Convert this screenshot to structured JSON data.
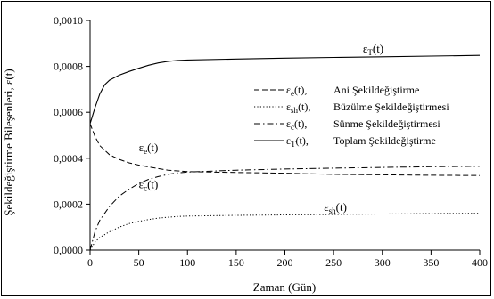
{
  "chart_data": {
    "type": "line",
    "title": "",
    "xlabel": "Zaman (Gün)",
    "ylabel": "Şekildeğiştirme Bileşenleri, ε(t)",
    "xlim": [
      0,
      400
    ],
    "ylim": [
      0,
      0.001
    ],
    "x_ticks": [
      "0",
      "50",
      "100",
      "150",
      "200",
      "250",
      "300",
      "350",
      "400"
    ],
    "y_ticks": [
      "0,0000",
      "0,0002",
      "0,0004",
      "0,0006",
      "0,0008",
      "0,0010"
    ],
    "grid": false,
    "legend": {
      "position": "center-right",
      "entries": [
        {
          "symbol": "ε",
          "sub": "e",
          "suffix": "(t),",
          "text": "Ani Şekildeğiştirme"
        },
        {
          "symbol": "ε",
          "sub": "sh",
          "suffix": "(t),",
          "text": "Büzülme Şekildeğiştirmesi"
        },
        {
          "symbol": "ε",
          "sub": "c",
          "suffix": "(t),",
          "text": "Sünme Şekildeğiştirmesi"
        },
        {
          "symbol": "ε",
          "sub": "T",
          "suffix": "(t),",
          "text": "Toplam Şekildeğiştirme"
        }
      ]
    },
    "series": [
      {
        "name": "εe(t)",
        "style": "dashed",
        "x": [
          0,
          5,
          10,
          20,
          30,
          40,
          50,
          60,
          80,
          100,
          150,
          200,
          250,
          300,
          350,
          400
        ],
        "y": [
          0.00055,
          0.000495,
          0.000455,
          0.000415,
          0.000395,
          0.00038,
          0.00037,
          0.000362,
          0.000348,
          0.000342,
          0.000338,
          0.000335,
          0.00033,
          0.000328,
          0.000326,
          0.000325
        ]
      },
      {
        "name": "εsh(t)",
        "style": "dotted",
        "x": [
          0,
          5,
          10,
          20,
          30,
          40,
          50,
          60,
          70,
          80,
          90,
          100,
          150,
          200,
          250,
          300,
          350,
          400
        ],
        "y": [
          0,
          3.5e-05,
          5.5e-05,
          8e-05,
          0.0001,
          0.000115,
          0.000125,
          0.000133,
          0.000139,
          0.000143,
          0.000146,
          0.000148,
          0.000151,
          0.000153,
          0.000155,
          0.000157,
          0.000159,
          0.00016
        ]
      },
      {
        "name": "εc(t)",
        "style": "dashdot",
        "x": [
          0,
          5,
          10,
          20,
          30,
          40,
          50,
          60,
          70,
          80,
          90,
          100,
          150,
          200,
          250,
          300,
          350,
          400
        ],
        "y": [
          0,
          8e-05,
          0.00013,
          0.00019,
          0.000235,
          0.000265,
          0.00029,
          0.000308,
          0.00032,
          0.00033,
          0.000336,
          0.00034,
          0.000348,
          0.000353,
          0.000357,
          0.00036,
          0.000363,
          0.000365
        ]
      },
      {
        "name": "εT(t)",
        "style": "solid",
        "x": [
          0,
          5,
          10,
          15,
          20,
          30,
          40,
          50,
          60,
          70,
          80,
          90,
          100,
          150,
          200,
          250,
          300,
          350,
          400
        ],
        "y": [
          0.00055,
          0.00062,
          0.00068,
          0.00072,
          0.00074,
          0.000762,
          0.000778,
          0.000792,
          0.000805,
          0.000815,
          0.000822,
          0.000826,
          0.000828,
          0.000832,
          0.000836,
          0.000839,
          0.000842,
          0.000845,
          0.000848
        ]
      }
    ],
    "annotations": [
      {
        "symbol": "ε",
        "sub": "T",
        "suffix": "(t)",
        "x": 280,
        "y": 0.00086
      },
      {
        "symbol": "ε",
        "sub": "e",
        "suffix": "(t)",
        "x": 50,
        "y": 0.00043
      },
      {
        "symbol": "ε",
        "sub": "c",
        "suffix": "(t)",
        "x": 50,
        "y": 0.00027
      },
      {
        "symbol": "ε",
        "sub": "sh",
        "suffix": "(t)",
        "x": 240,
        "y": 0.00017
      }
    ]
  }
}
